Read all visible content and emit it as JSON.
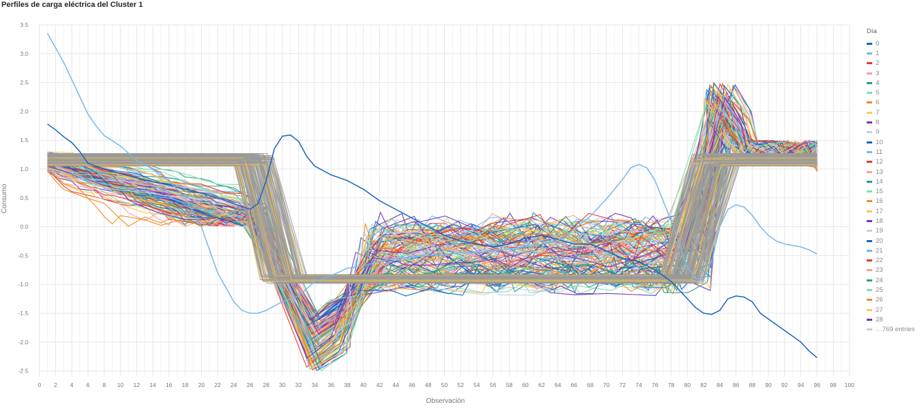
{
  "chart_data": {
    "type": "line",
    "title": "Perfiles de carga eléctrica del Cluster 1",
    "xlabel": "Observación",
    "ylabel": "Consumo",
    "xlim": [
      0,
      100
    ],
    "ylim": [
      -2.6,
      3.5
    ],
    "xticks": [
      0,
      2,
      4,
      6,
      8,
      10,
      12,
      14,
      16,
      18,
      20,
      22,
      24,
      26,
      28,
      30,
      32,
      34,
      36,
      38,
      40,
      42,
      44,
      46,
      48,
      50,
      52,
      54,
      56,
      58,
      60,
      62,
      64,
      66,
      68,
      70,
      72,
      74,
      76,
      78,
      80,
      82,
      84,
      86,
      88,
      90,
      92,
      94,
      96,
      98,
      100
    ],
    "yticks": [
      3.5,
      3.0,
      2.5,
      2.0,
      1.5,
      1.0,
      0.5,
      0.0,
      -0.5,
      -1.0,
      -1.5,
      -2.0,
      -2.5
    ],
    "grid": true,
    "legend_title": "Día",
    "legend_position": "right",
    "legend_entries": [
      "0",
      "1",
      "2",
      "3",
      "4",
      "5",
      "6",
      "7",
      "8",
      "9",
      "10",
      "11",
      "12",
      "13",
      "14",
      "15",
      "16",
      "17",
      "18",
      "19",
      "20",
      "21",
      "22",
      "23",
      "24",
      "25",
      "26",
      "27",
      "28"
    ],
    "legend_more": "…769 entries",
    "palette": [
      "#1565c0",
      "#74b9f0",
      "#e53935",
      "#f4a0a0",
      "#26a08a",
      "#7fe0a8",
      "#f08c1e",
      "#fbc85a",
      "#6c3ab8",
      "#c9c9e8"
    ],
    "series": [
      {
        "name": "0",
        "color": "#1565c0",
        "points": [
          [
            1,
            1.78
          ],
          [
            2,
            1.68
          ],
          [
            3,
            1.56
          ],
          [
            4,
            1.46
          ],
          [
            5,
            1.3
          ],
          [
            6,
            1.1
          ],
          [
            8,
            1.0
          ],
          [
            10,
            0.92
          ],
          [
            12,
            0.85
          ],
          [
            14,
            0.78
          ],
          [
            16,
            0.72
          ],
          [
            18,
            0.65
          ],
          [
            20,
            0.58
          ],
          [
            22,
            0.5
          ],
          [
            24,
            0.4
          ],
          [
            26,
            0.3
          ],
          [
            27,
            0.4
          ],
          [
            28,
            0.8
          ],
          [
            29,
            1.35
          ],
          [
            30,
            1.57
          ],
          [
            31,
            1.59
          ],
          [
            32,
            1.48
          ],
          [
            33,
            1.22
          ],
          [
            34,
            1.05
          ],
          [
            36,
            0.9
          ],
          [
            38,
            0.8
          ],
          [
            40,
            0.65
          ],
          [
            42,
            0.45
          ],
          [
            44,
            0.3
          ],
          [
            46,
            0.15
          ],
          [
            48,
            0.0
          ],
          [
            50,
            -0.15
          ],
          [
            52,
            -0.25
          ],
          [
            54,
            -0.3
          ],
          [
            56,
            -0.35
          ],
          [
            58,
            -0.3
          ],
          [
            60,
            -0.2
          ],
          [
            62,
            -0.15
          ],
          [
            64,
            -0.22
          ],
          [
            66,
            -0.3
          ],
          [
            68,
            -0.3
          ],
          [
            70,
            -0.42
          ],
          [
            72,
            -0.55
          ],
          [
            74,
            -0.6
          ],
          [
            76,
            -0.75
          ],
          [
            78,
            -0.95
          ],
          [
            80,
            -1.25
          ],
          [
            81,
            -1.4
          ],
          [
            82,
            -1.5
          ],
          [
            83,
            -1.52
          ],
          [
            84,
            -1.45
          ],
          [
            85,
            -1.25
          ],
          [
            86,
            -1.2
          ],
          [
            87,
            -1.22
          ],
          [
            88,
            -1.3
          ],
          [
            89,
            -1.5
          ],
          [
            90,
            -1.6
          ],
          [
            92,
            -1.8
          ],
          [
            94,
            -2.0
          ],
          [
            95,
            -2.15
          ],
          [
            96,
            -2.27
          ]
        ]
      },
      {
        "name": "1",
        "color": "#74b9f0",
        "points": [
          [
            1,
            3.35
          ],
          [
            2,
            3.1
          ],
          [
            3,
            2.85
          ],
          [
            4,
            2.55
          ],
          [
            5,
            2.25
          ],
          [
            6,
            1.95
          ],
          [
            7,
            1.75
          ],
          [
            8,
            1.58
          ],
          [
            10,
            1.4
          ],
          [
            12,
            1.15
          ],
          [
            14,
            1.0
          ],
          [
            16,
            0.8
          ],
          [
            18,
            0.5
          ],
          [
            20,
            0.0
          ],
          [
            21,
            -0.4
          ],
          [
            22,
            -0.8
          ],
          [
            23,
            -1.05
          ],
          [
            24,
            -1.3
          ],
          [
            25,
            -1.45
          ],
          [
            26,
            -1.5
          ],
          [
            27,
            -1.5
          ],
          [
            28,
            -1.45
          ],
          [
            30,
            -1.3
          ],
          [
            32,
            -1.2
          ],
          [
            34,
            -0.95
          ],
          [
            36,
            -0.85
          ],
          [
            38,
            -0.72
          ],
          [
            40,
            -0.68
          ],
          [
            42,
            -0.6
          ],
          [
            44,
            -0.55
          ],
          [
            46,
            -0.52
          ],
          [
            48,
            -0.5
          ],
          [
            50,
            -0.48
          ],
          [
            52,
            -0.45
          ],
          [
            54,
            -0.45
          ],
          [
            56,
            -0.42
          ],
          [
            58,
            -0.38
          ],
          [
            60,
            -0.35
          ],
          [
            62,
            -0.3
          ],
          [
            64,
            -0.25
          ],
          [
            66,
            -0.05
          ],
          [
            68,
            0.18
          ],
          [
            70,
            0.48
          ],
          [
            72,
            0.82
          ],
          [
            73,
            1.02
          ],
          [
            74,
            1.08
          ],
          [
            75,
            1.02
          ],
          [
            76,
            0.8
          ],
          [
            77,
            0.45
          ],
          [
            78,
            0.1
          ],
          [
            79,
            -0.3
          ],
          [
            80,
            -0.7
          ],
          [
            81,
            -0.9
          ],
          [
            82,
            -0.92
          ],
          [
            83,
            -0.6
          ],
          [
            84,
            0.0
          ],
          [
            85,
            0.3
          ],
          [
            86,
            0.38
          ],
          [
            87,
            0.34
          ],
          [
            88,
            0.2
          ],
          [
            89,
            0.0
          ],
          [
            90,
            -0.15
          ],
          [
            91,
            -0.25
          ],
          [
            92,
            -0.3
          ],
          [
            94,
            -0.35
          ],
          [
            95,
            -0.4
          ],
          [
            96,
            -0.47
          ]
        ]
      }
    ]
  }
}
